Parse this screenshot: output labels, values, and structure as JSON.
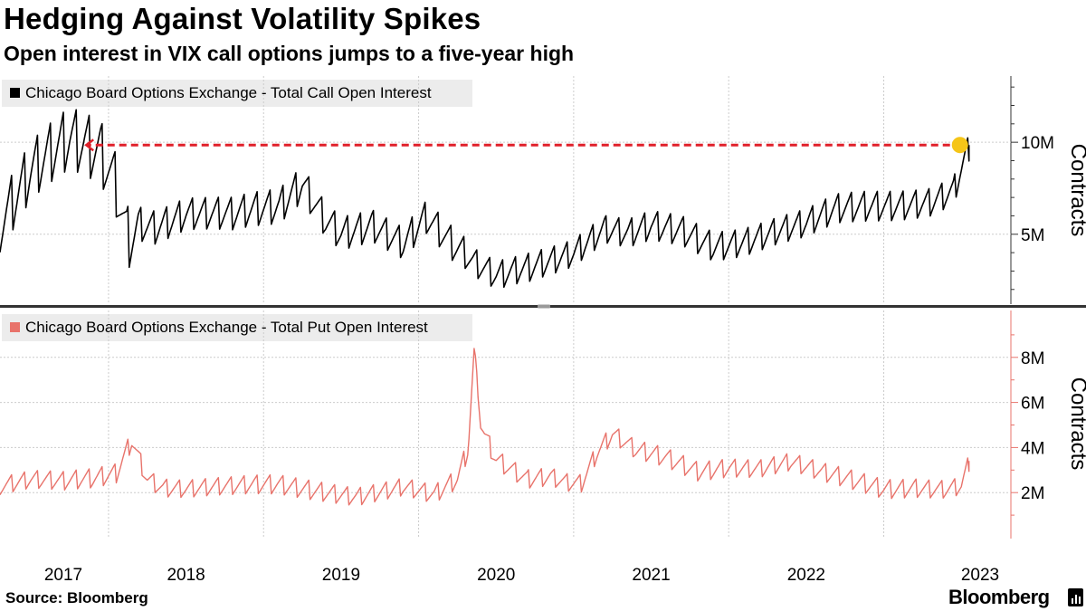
{
  "title": "Hedging Against Volatility Spikes",
  "subtitle": "Open interest in VIX call options jumps to a five-year high",
  "source": "Source: Bloomberg",
  "brand": "Bloomberg",
  "colors": {
    "call_series": "#000000",
    "put_series": "#e8736b",
    "put_axis": "#e8736b",
    "annotation_arrow": "#e0202a",
    "highlight_dot": "#f5c518",
    "grid": "#cccccc",
    "legend_bg": "#ececec",
    "divider": "#333333"
  },
  "chart_data": [
    {
      "type": "line",
      "panel": "top",
      "legend": "Chicago Board Options Exchange - Total Call Open Interest",
      "ylabel": "Contracts",
      "ylim": [
        1.3,
        13.5
      ],
      "y_unit": "M",
      "yticks": [
        {
          "value": 5,
          "label": "5M"
        },
        {
          "value": 10,
          "label": "10M"
        }
      ],
      "xlim": [
        2016.8,
        2023.25
      ],
      "annotation": {
        "type": "dashed-arrow",
        "from_x": 2023.05,
        "to_x": 2017.35,
        "y": 9.85
      },
      "highlight_point": {
        "x": 2023.05,
        "y": 9.85
      },
      "series": [
        {
          "name": "Total Call Open Interest",
          "x": [
            2016.8,
            2017.0,
            2017.25,
            2017.45,
            2017.55,
            2017.62,
            2017.7,
            2017.8,
            2018.0,
            2018.3,
            2018.6,
            2018.75,
            2018.9,
            2019.0,
            2019.2,
            2019.4,
            2019.55,
            2019.7,
            2019.85,
            2020.0,
            2020.1,
            2020.3,
            2020.5,
            2020.7,
            2020.85,
            2021.0,
            2021.2,
            2021.4,
            2021.6,
            2021.8,
            2022.0,
            2022.2,
            2022.4,
            2022.6,
            2022.8,
            2022.95,
            2023.05
          ],
          "y": [
            6.0,
            8.5,
            10.2,
            9.8,
            8.2,
            5.5,
            6.0,
            5.8,
            6.4,
            6.1,
            6.6,
            8.0,
            6.2,
            5.5,
            5.8,
            4.6,
            5.9,
            4.6,
            3.6,
            3.0,
            3.3,
            3.8,
            4.2,
            5.3,
            5.0,
            5.5,
            5.4,
            4.7,
            4.9,
            5.3,
            5.6,
            6.4,
            6.7,
            6.9,
            7.1,
            7.6,
            9.85
          ]
        }
      ]
    },
    {
      "type": "line",
      "panel": "bottom",
      "legend": "Chicago Board Options Exchange - Total Put Open Interest",
      "ylabel": "Contracts",
      "ylim": [
        0,
        10
      ],
      "y_unit": "M",
      "yticks": [
        {
          "value": 2,
          "label": "2M"
        },
        {
          "value": 4,
          "label": "4M"
        },
        {
          "value": 6,
          "label": "6M"
        },
        {
          "value": 8,
          "label": "8M"
        }
      ],
      "xlim": [
        2016.8,
        2023.25
      ],
      "x_tick_labels": [
        "2017",
        "2018",
        "2019",
        "2020",
        "2021",
        "2022",
        "2023"
      ],
      "series": [
        {
          "name": "Total Put Open Interest",
          "x": [
            2016.8,
            2017.0,
            2017.2,
            2017.4,
            2017.55,
            2017.65,
            2017.75,
            2017.85,
            2018.0,
            2018.3,
            2018.6,
            2018.9,
            2019.1,
            2019.4,
            2019.6,
            2019.75,
            2019.82,
            2019.86,
            2019.9,
            2020.0,
            2020.2,
            2020.35,
            2020.45,
            2020.55,
            2020.65,
            2020.75,
            2020.9,
            2021.1,
            2021.3,
            2021.5,
            2021.7,
            2021.9,
            2022.1,
            2022.3,
            2022.5,
            2022.7,
            2022.9,
            2023.0,
            2023.05
          ],
          "y": [
            2.4,
            2.6,
            2.5,
            2.7,
            3.0,
            4.5,
            2.8,
            2.4,
            2.3,
            2.3,
            2.4,
            2.2,
            2.0,
            2.3,
            1.9,
            2.6,
            4.0,
            8.5,
            5.0,
            3.6,
            2.8,
            2.9,
            2.6,
            2.5,
            3.8,
            4.6,
            3.9,
            3.6,
            3.1,
            3.3,
            3.2,
            3.4,
            2.9,
            2.6,
            2.3,
            2.4,
            2.3,
            2.4,
            3.4
          ]
        }
      ]
    }
  ]
}
